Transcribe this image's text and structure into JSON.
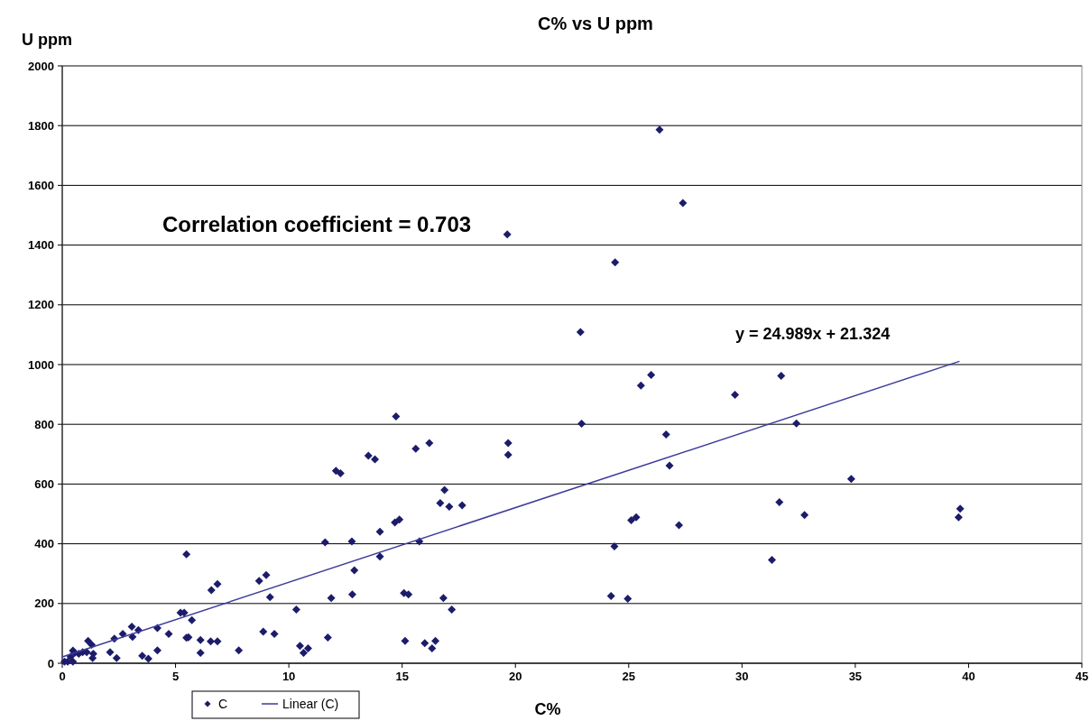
{
  "chart_data": {
    "type": "scatter",
    "title": "C% vs U ppm",
    "xlabel": "C%",
    "ylabel": "U ppm",
    "xlim": [
      0,
      45
    ],
    "xticks": [
      0,
      5,
      10,
      15,
      20,
      25,
      30,
      35,
      40,
      45
    ],
    "ylim": [
      0,
      2000
    ],
    "yticks": [
      0,
      200,
      400,
      600,
      800,
      1000,
      1200,
      1400,
      1600,
      1800,
      2000
    ],
    "grid": "y",
    "legend": "bottom",
    "marker": "diamond",
    "annotations": [
      "Correlation coefficient = 0.703",
      "y = 24.989x + 21.324"
    ],
    "series": [
      {
        "name": "C",
        "color": "#1c1c6b",
        "x": [
          0.1,
          0.24,
          0.47,
          0.37,
          0.47,
          0.55,
          0.73,
          0.9,
          1.08,
          1.14,
          1.3,
          1.37,
          1.34,
          2.11,
          2.4,
          2.3,
          2.67,
          3.07,
          3.1,
          3.36,
          3.53,
          3.8,
          4.2,
          4.2,
          4.7,
          5.22,
          5.38,
          5.72,
          5.48,
          5.57,
          6.1,
          6.1,
          6.55,
          6.85,
          5.48,
          6.58,
          6.85,
          7.79,
          8.69,
          9.0,
          9.17,
          8.87,
          9.36,
          10.33,
          10.49,
          10.65,
          10.85,
          11.6,
          11.72,
          11.87,
          12.08,
          12.28,
          12.78,
          12.8,
          12.89,
          13.51,
          13.8,
          14.02,
          14.02,
          14.68,
          14.88,
          14.73,
          15.08,
          15.28,
          15.13,
          15.6,
          15.76,
          16.0,
          16.2,
          16.32,
          16.47,
          16.68,
          16.82,
          16.87,
          17.08,
          17.19,
          17.65,
          19.64,
          19.68,
          19.68,
          22.87,
          22.92,
          24.22,
          24.37,
          24.4,
          24.96,
          25.11,
          25.33,
          25.54,
          25.99,
          26.36,
          26.65,
          26.8,
          27.22,
          27.39,
          29.69,
          31.32,
          31.65,
          31.73,
          32.4,
          32.76,
          34.82,
          39.56,
          39.63
        ],
        "values": [
          5,
          5,
          5,
          22,
          42,
          35,
          32,
          37,
          37,
          75,
          62,
          32,
          17,
          37,
          17,
          82,
          98,
          122,
          88,
          111,
          25,
          15,
          118,
          43,
          98,
          169,
          169,
          144,
          85,
          87,
          78,
          35,
          73,
          73,
          365,
          245,
          265,
          43,
          276,
          295,
          221,
          106,
          98,
          180,
          58,
          35,
          50,
          405,
          86,
          218,
          644,
          636,
          408,
          230,
          311,
          695,
          683,
          440,
          357,
          471,
          481,
          826,
          235,
          230,
          75,
          718,
          408,
          67,
          737,
          50,
          75,
          536,
          218,
          580,
          524,
          180,
          529,
          1436,
          737,
          698,
          1109,
          802,
          225,
          391,
          1342,
          216,
          479,
          489,
          930,
          965,
          1786,
          766,
          662,
          462,
          1541,
          899,
          346,
          539,
          962,
          803,
          496,
          617,
          489,
          517
        ]
      },
      {
        "name": "Linear (C)",
        "type": "line",
        "color": "#3b3b9c",
        "marker": "none",
        "line_style": "solid",
        "x": [
          0,
          39.6
        ],
        "values": [
          21,
          1011
        ]
      }
    ]
  }
}
